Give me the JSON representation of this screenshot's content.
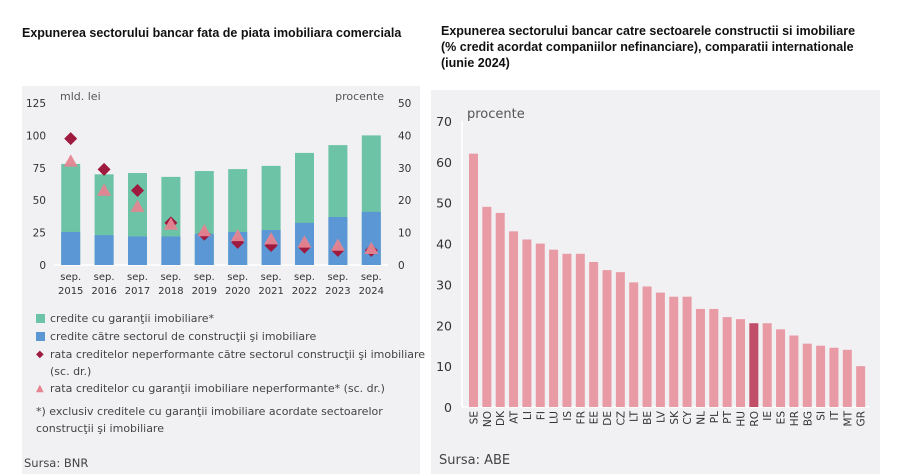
{
  "left_title": "Expunerea sectorului bancar fata de piata imobiliara comerciala",
  "right_title": "Expunerea sectorului bancar catre sectoarele constructii si imobiliare (% credit acordat companiilor nefinanciare), comparatii internationale (iunie 2024)",
  "chart_data": [
    {
      "type": "bar",
      "stacked": true,
      "title": "Expunerea sectorului bancar fata de piata imobiliara comerciala",
      "categories": [
        "sep. 2015",
        "sep. 2016",
        "sep. 2017",
        "sep. 2018",
        "sep. 2019",
        "sep. 2020",
        "sep. 2021",
        "sep. 2022",
        "sep. 2023",
        "sep. 2024"
      ],
      "category_lines": [
        [
          "sep.",
          "2015"
        ],
        [
          "sep.",
          "2016"
        ],
        [
          "sep.",
          "2017"
        ],
        [
          "sep.",
          "2018"
        ],
        [
          "sep.",
          "2019"
        ],
        [
          "sep.",
          "2020"
        ],
        [
          "sep.",
          "2021"
        ],
        [
          "sep.",
          "2022"
        ],
        [
          "sep.",
          "2023"
        ],
        [
          "sep.",
          "2024"
        ]
      ],
      "ylabel_left": "mld. lei",
      "ylabel_right": "procente",
      "ylim_left": [
        0,
        125
      ],
      "yticks_left": [
        0,
        25,
        50,
        75,
        100,
        125
      ],
      "ylim_right": [
        0,
        50
      ],
      "yticks_right": [
        0,
        10,
        20,
        30,
        40,
        50
      ],
      "series": [
        {
          "name": "credite cu garanţii imobiliare*",
          "kind": "bar-total",
          "axis": "left",
          "color": "#6cc3a6",
          "values": [
            78,
            70,
            71,
            68,
            72.5,
            74,
            76.5,
            86.5,
            92.5,
            100
          ]
        },
        {
          "name": "credite către sectorul de construcţii şi imobiliare",
          "kind": "bar",
          "axis": "left",
          "color": "#5b97d5",
          "values": [
            25.5,
            23,
            22,
            22,
            24,
            25.5,
            27,
            32.5,
            37,
            41
          ]
        },
        {
          "name": "rata creditelor neperformante către sectorul construcţii şi imobiliare (sc. dr.)",
          "kind": "diamond",
          "axis": "right",
          "color": "#9e1b3f",
          "values": [
            39,
            29.5,
            23,
            13,
            9.5,
            7,
            6,
            5.5,
            4.5,
            4.5
          ]
        },
        {
          "name": "rata creditelor cu garanţii imobiliare neperformante* (sc. dr.)",
          "kind": "triangle",
          "axis": "right",
          "color": "#e48591",
          "values": [
            32,
            23,
            18,
            12.5,
            10.5,
            9,
            8,
            7,
            6,
            5
          ]
        }
      ],
      "legend": [
        {
          "marker": "square",
          "color": "#6cc3a6",
          "label": "credite cu garanţii imobiliare*"
        },
        {
          "marker": "square",
          "color": "#5b97d5",
          "label": "credite către sectorul de construcţii şi imobiliare"
        },
        {
          "marker": "diamond",
          "color": "#9e1b3f",
          "label": "rata creditelor neperformante către sectorul construcţii şi imobiliare (sc. dr.)"
        },
        {
          "marker": "triangle",
          "color": "#e48591",
          "label": "rata creditelor cu garanţii imobiliare neperformante* (sc. dr.)"
        }
      ],
      "note": "*) exclusiv creditele cu garanţii imobiliare acordate sectoarelor construcţii şi imobiliare",
      "legend_position": "bottom",
      "source": "Sursa: BNR",
      "grid": false
    },
    {
      "type": "bar",
      "title": "Expunerea sectorului bancar catre sectoarele constructii si imobiliare (% credit acordat companiilor nefinanciare), comparatii internationale (iunie 2024)",
      "ylabel": "procente",
      "ylim": [
        0,
        70
      ],
      "yticks": [
        0,
        10,
        20,
        30,
        40,
        50,
        60,
        70
      ],
      "categories": [
        "SE",
        "NO",
        "DK",
        "AT",
        "LI",
        "FI",
        "LU",
        "IS",
        "FR",
        "EE",
        "DE",
        "CZ",
        "LT",
        "BE",
        "LV",
        "SK",
        "CY",
        "NL",
        "PL",
        "PT",
        "HU",
        "RO",
        "IE",
        "ES",
        "HR",
        "BG",
        "SI",
        "IT",
        "MT",
        "GR"
      ],
      "values": [
        62,
        49,
        47.5,
        43,
        41,
        40,
        38.5,
        37.5,
        37.5,
        35.5,
        33.5,
        33,
        30.5,
        29.5,
        28,
        27,
        27,
        24,
        24,
        22,
        21.5,
        20.5,
        20.5,
        19,
        17.5,
        15.5,
        15,
        14.5,
        14,
        10
      ],
      "color": "#e89ba4",
      "highlight": {
        "category": "RO",
        "color": "#c04e68"
      },
      "source": "Sursa: ABE",
      "grid": false
    }
  ]
}
